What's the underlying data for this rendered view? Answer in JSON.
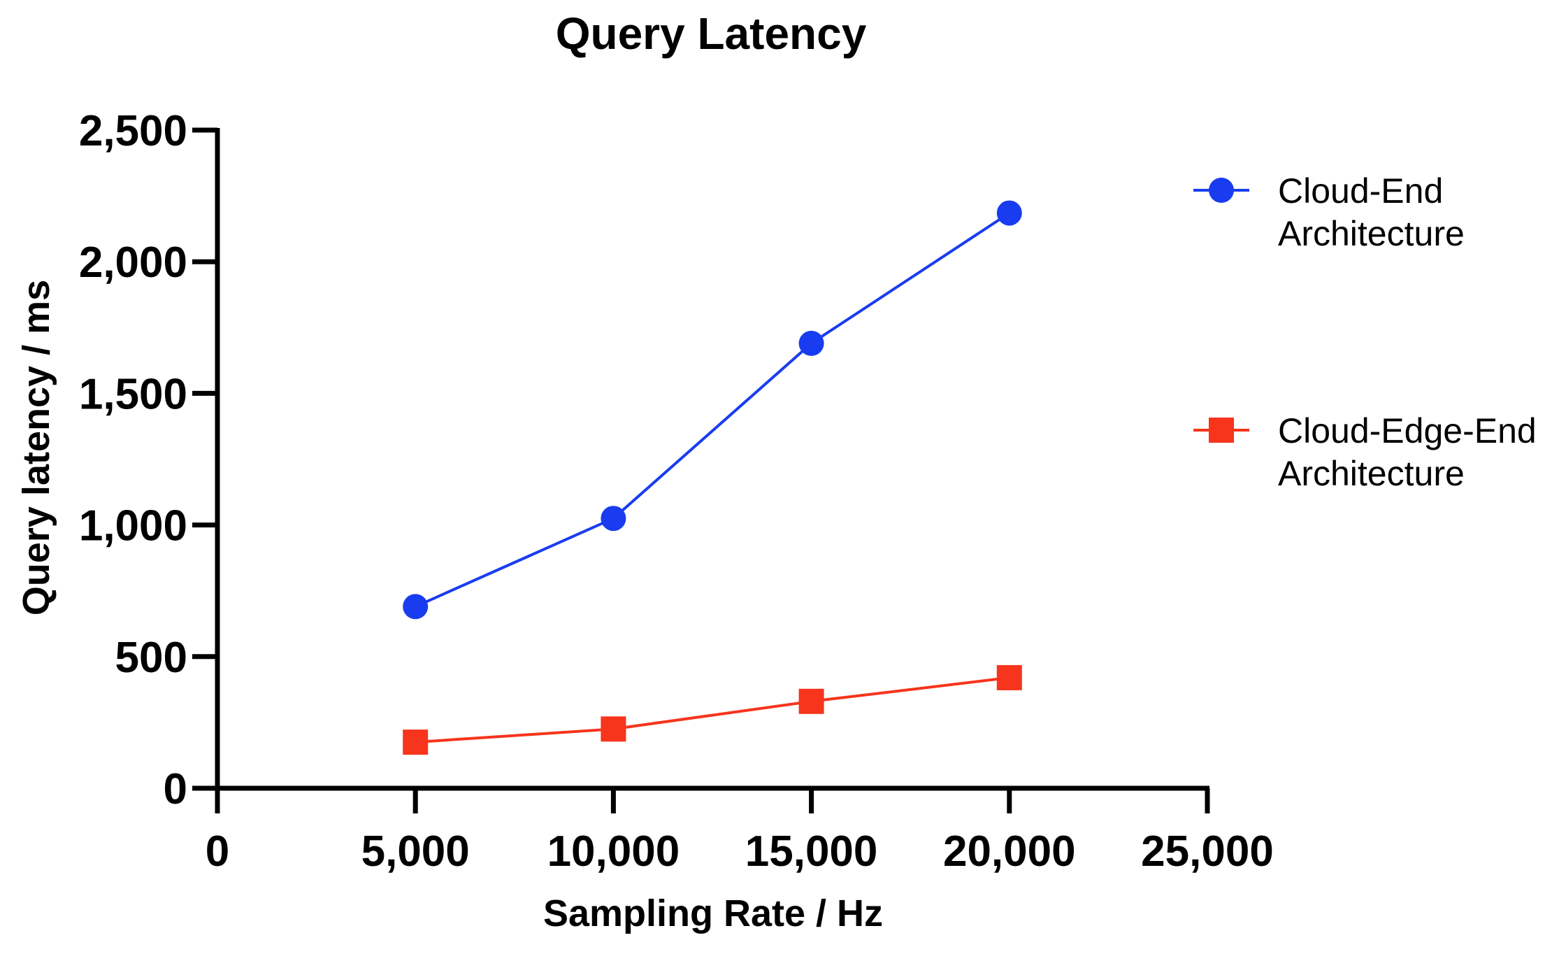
{
  "chart_data": {
    "type": "line",
    "title": "Query Latency",
    "xlabel": "Sampling Rate / Hz",
    "ylabel": "Query latency / ms",
    "xlim": [
      0,
      25000
    ],
    "ylim": [
      0,
      2500
    ],
    "x_ticks": [
      0,
      5000,
      10000,
      15000,
      20000,
      25000
    ],
    "y_ticks": [
      0,
      500,
      1000,
      1500,
      2000,
      2500
    ],
    "x_tick_labels": [
      "0",
      "5,000",
      "10,000",
      "15,000",
      "20,000",
      "25,000"
    ],
    "y_tick_labels": [
      "0",
      "500",
      "1,000",
      "1,500",
      "2,000",
      "2,500"
    ],
    "grid": false,
    "legend_position": "right",
    "series": [
      {
        "name_lines": [
          "Cloud-End",
          "Architecture"
        ],
        "color": "#1a3cf0",
        "marker": "circle",
        "x": [
          5000,
          10000,
          15000,
          20000
        ],
        "y": [
          690,
          1025,
          1690,
          2185
        ]
      },
      {
        "name_lines": [
          "Cloud-Edge-End",
          "Architecture"
        ],
        "color": "#f7341c",
        "marker": "square",
        "x": [
          5000,
          10000,
          15000,
          20000
        ],
        "y": [
          175,
          225,
          330,
          420
        ]
      }
    ]
  }
}
